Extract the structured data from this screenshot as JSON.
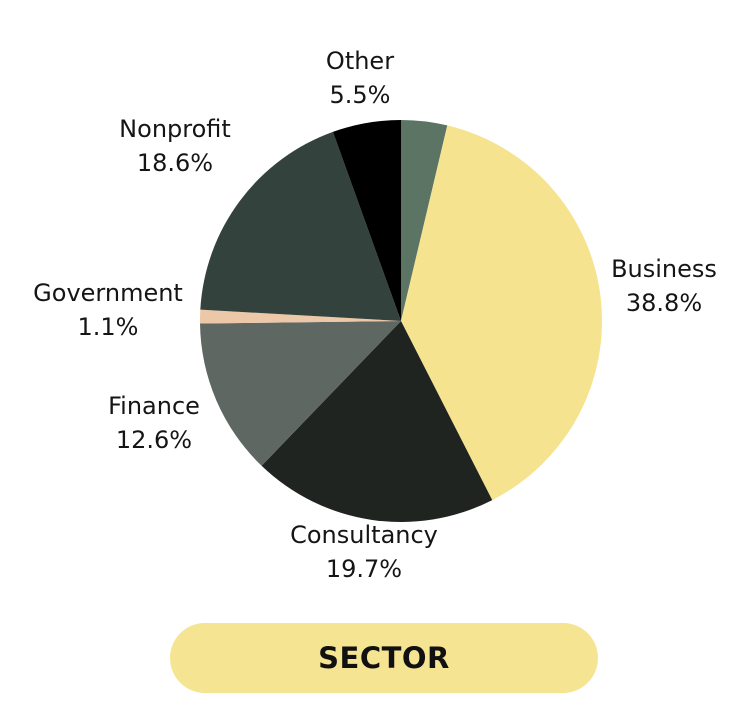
{
  "chart_data": {
    "type": "pie",
    "title": "SECTOR",
    "start_angle_deg": 0,
    "direction": "clockwise",
    "slices": [
      {
        "label": "",
        "value": 3.7,
        "display": "",
        "color": "#5B7463"
      },
      {
        "label": "Business",
        "value": 38.8,
        "display": "38.8%",
        "color": "#F5E38F"
      },
      {
        "label": "Consultancy",
        "value": 19.7,
        "display": "19.7%",
        "color": "#1F2421"
      },
      {
        "label": "Finance",
        "value": 12.6,
        "display": "12.6%",
        "color": "#5E6762"
      },
      {
        "label": "Government",
        "value": 1.1,
        "display": "1.1%",
        "color": "#ECC8A8"
      },
      {
        "label": "Nonprofit",
        "value": 18.6,
        "display": "18.6%",
        "color": "#34423E"
      },
      {
        "label": "Other",
        "value": 5.5,
        "display": "5.5%",
        "color": "#000000"
      }
    ]
  },
  "labels": {
    "business": {
      "name": "Business",
      "pct": "38.8%"
    },
    "consultancy": {
      "name": "Consultancy",
      "pct": "19.7%"
    },
    "finance": {
      "name": "Finance",
      "pct": "12.6%"
    },
    "government": {
      "name": "Government",
      "pct": "1.1%"
    },
    "nonprofit": {
      "name": "Nonprofit",
      "pct": "18.6%"
    },
    "other": {
      "name": "Other",
      "pct": "5.5%"
    }
  },
  "footer": {
    "title": "SECTOR",
    "pill_color": "#F5E491"
  }
}
